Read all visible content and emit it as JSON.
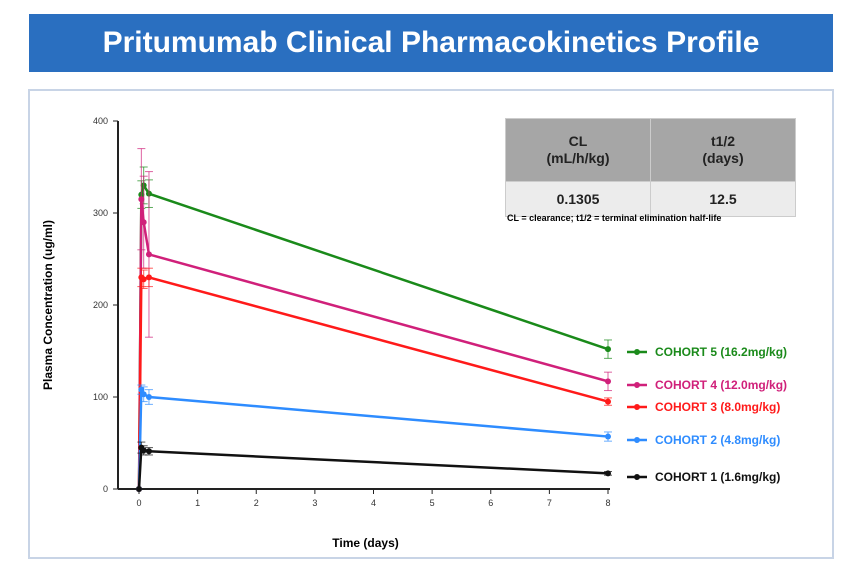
{
  "title": "Pritumumab Clinical Pharmacokinetics Profile",
  "pk_table": {
    "headers": [
      "CL (mL/h/kg)",
      "t1/2 (days)"
    ],
    "header_lines": [
      [
        "CL",
        "(mL/h/kg)"
      ],
      [
        "t",
        "1/2",
        "(days)"
      ]
    ],
    "values": [
      "0.1305",
      "12.5"
    ],
    "note": "CL = clearance;  t1/2 = terminal elimination half-life"
  },
  "chart_data": {
    "type": "line",
    "xlabel": "Time (days)",
    "ylabel": "Plasma Concentration (ug/ml)",
    "xlim": [
      0,
      8
    ],
    "ylim": [
      0,
      400
    ],
    "xticks": [
      0,
      1,
      2,
      3,
      4,
      5,
      6,
      7,
      8
    ],
    "yticks": [
      0,
      100,
      200,
      300,
      400
    ],
    "grid": false,
    "legend_placement": "right",
    "series": [
      {
        "name": "COHORT 5 (16.2mg/kg)",
        "color": "#1a8a1a",
        "x": [
          0,
          0.04,
          0.08,
          0.17,
          8
        ],
        "y": [
          0,
          320,
          330,
          321,
          152
        ],
        "err": [
          0,
          15,
          20,
          15,
          10
        ]
      },
      {
        "name": "COHORT 4 (12.0mg/kg)",
        "color": "#d0207a",
        "x": [
          0,
          0.04,
          0.08,
          0.17,
          8
        ],
        "y": [
          0,
          315,
          290,
          255,
          117
        ],
        "err": [
          0,
          55,
          50,
          90,
          10
        ]
      },
      {
        "name": "COHORT 3 (8.0mg/kg)",
        "color": "#ff1a1a",
        "x": [
          0,
          0.04,
          0.08,
          0.17,
          8
        ],
        "y": [
          0,
          230,
          228,
          230,
          95
        ],
        "err": [
          0,
          10,
          10,
          10,
          4
        ]
      },
      {
        "name": "COHORT 2 (4.8mg/kg)",
        "color": "#2e8cff",
        "x": [
          0,
          0.04,
          0.08,
          0.17,
          8
        ],
        "y": [
          0,
          108,
          103,
          100,
          57
        ],
        "err": [
          0,
          5,
          8,
          8,
          5
        ]
      },
      {
        "name": "COHORT 1 (1.6mg/kg)",
        "color": "#111111",
        "x": [
          0,
          0.04,
          0.08,
          0.17,
          8
        ],
        "y": [
          0,
          45,
          42,
          41,
          17
        ],
        "err": [
          0,
          6,
          5,
          4,
          2
        ]
      }
    ]
  }
}
